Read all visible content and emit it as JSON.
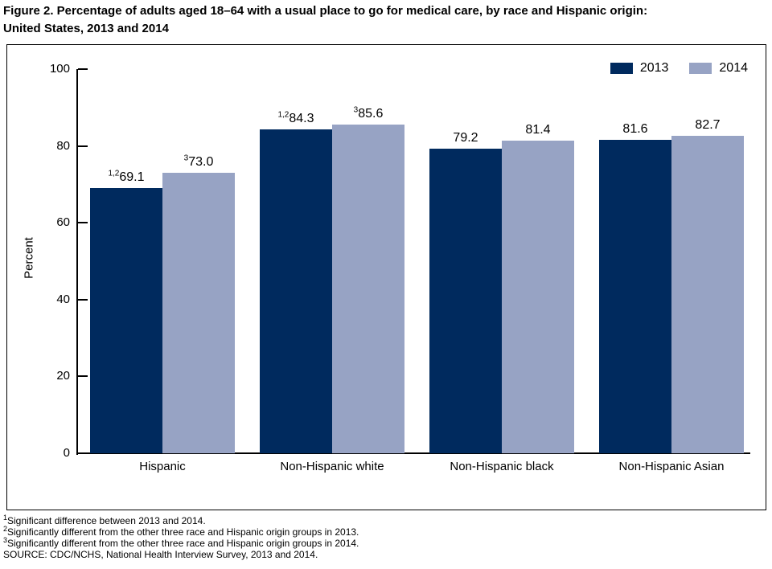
{
  "title": {
    "line1": "Figure 2. Percentage of adults aged 18–64 with a usual place to go for medical care, by race and Hispanic origin:",
    "line2": "United States, 2013 and 2014"
  },
  "chart_data": {
    "type": "bar",
    "title": "Figure 2. Percentage of adults aged 18–64 with a usual place to go for medical care, by race and Hispanic origin: United States, 2013 and 2014",
    "categories": [
      "Hispanic",
      "Non-Hispanic white",
      "Non-Hispanic black",
      "Non-Hispanic Asian"
    ],
    "series": [
      {
        "name": "2013",
        "color": "#002a5e",
        "values": [
          69.1,
          84.3,
          79.2,
          81.6
        ],
        "labels": [
          "69.1",
          "84.3",
          "79.2",
          "81.6"
        ],
        "label_superscripts": [
          "1,2",
          "1,2",
          "",
          ""
        ]
      },
      {
        "name": "2014",
        "color": "#97a3c4",
        "values": [
          73.0,
          85.6,
          81.4,
          82.7
        ],
        "labels": [
          "73.0",
          "85.6",
          "81.4",
          "82.7"
        ],
        "label_superscripts": [
          "3",
          "3",
          "",
          ""
        ]
      }
    ],
    "xlabel": "",
    "ylabel": "Percent",
    "ylim": [
      0,
      100
    ],
    "yticks": [
      0,
      20,
      40,
      60,
      80,
      100
    ],
    "grid": "off",
    "legend_position": "top-right"
  },
  "footnotes": [
    {
      "sup": "1",
      "text": "Significant difference between 2013 and 2014."
    },
    {
      "sup": "2",
      "text": "Significantly different from the other three race and Hispanic origin groups in 2013."
    },
    {
      "sup": "3",
      "text": "Significantly different from the other three race and Hispanic origin groups in 2014."
    },
    {
      "sup": "",
      "text": "SOURCE: CDC/NCHS, National Health Interview Survey, 2013 and 2014."
    }
  ]
}
